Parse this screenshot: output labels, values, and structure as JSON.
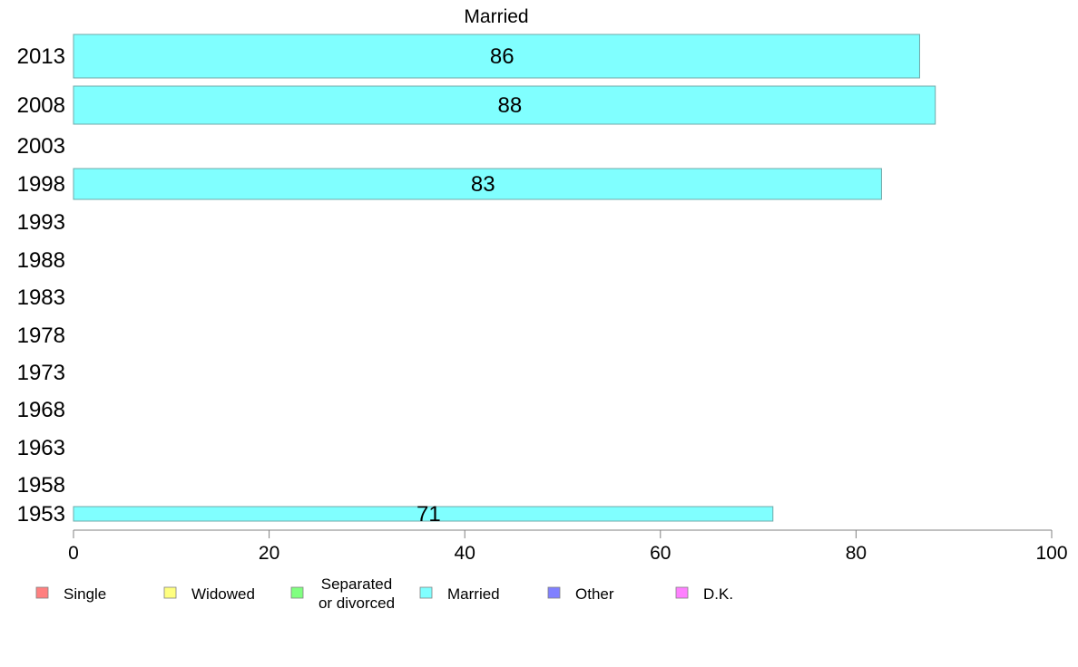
{
  "chart_data": {
    "type": "bar",
    "orientation": "horizontal",
    "title": "Married",
    "xlabel": "",
    "ylabel": "",
    "xlim": [
      0,
      100
    ],
    "x_ticks": [
      "0",
      "20",
      "40",
      "60",
      "80",
      "100"
    ],
    "categories": [
      "2013",
      "2008",
      "2003",
      "1998",
      "1993",
      "1988",
      "1983",
      "1978",
      "1973",
      "1968",
      "1963",
      "1958",
      "1953"
    ],
    "series": [
      {
        "values": [
          86,
          88,
          null,
          83,
          null,
          null,
          null,
          null,
          null,
          null,
          null,
          null,
          71
        ],
        "value_positions": [
          86.5,
          88.1,
          null,
          82.6,
          null,
          null,
          null,
          null,
          null,
          null,
          null,
          null,
          71.5
        ],
        "data_labels": [
          "86",
          "88",
          "",
          "83",
          "",
          "",
          "",
          "",
          "",
          "",
          "",
          "",
          "71"
        ],
        "color": "#80ffff"
      }
    ],
    "legend": {
      "placement": "bottom",
      "items": [
        {
          "label": "Single",
          "color": "#ff8080"
        },
        {
          "label": "Widowed",
          "color": "#ffff80"
        },
        {
          "label": "Separated\nor divorced",
          "color": "#80ff80"
        },
        {
          "label": "Married",
          "color": "#80ffff"
        },
        {
          "label": "Other",
          "color": "#8080ff"
        },
        {
          "label": "D.K.",
          "color": "#ff80ff"
        }
      ]
    },
    "grid": false
  }
}
